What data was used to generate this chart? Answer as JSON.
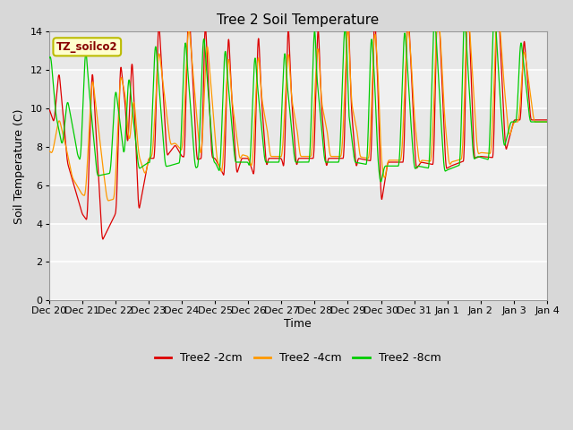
{
  "title": "Tree 2 Soil Temperature",
  "xlabel": "Time",
  "ylabel": "Soil Temperature (C)",
  "ylim": [
    0,
    14
  ],
  "yticks": [
    0,
    2,
    4,
    6,
    8,
    10,
    12,
    14
  ],
  "xtick_labels": [
    "Dec 20",
    "Dec 21",
    "Dec 22",
    "Dec 23",
    "Dec 24",
    "Dec 25",
    "Dec 26",
    "Dec 27",
    "Dec 28",
    "Dec 29",
    "Dec 30",
    "Dec 31",
    "Jan 1",
    "Jan 2",
    "Jan 3",
    "Jan 4"
  ],
  "legend_label": "TZ_soilco2",
  "legend_border_color": "#bbbb00",
  "legend_bg_color": "#ffffcc",
  "legend_text_color": "#880000",
  "line_colors": [
    "#dd0000",
    "#ff9900",
    "#00cc00"
  ],
  "line_labels": [
    "Tree2 -2cm",
    "Tree2 -4cm",
    "Tree2 -8cm"
  ],
  "bg_color": "#d8d8d8",
  "plot_bg_color": "#f0f0f0",
  "grid_color": "#ffffff",
  "stripe_color": "#e8e8e8",
  "title_fontsize": 11,
  "axis_label_fontsize": 9,
  "tick_fontsize": 8
}
